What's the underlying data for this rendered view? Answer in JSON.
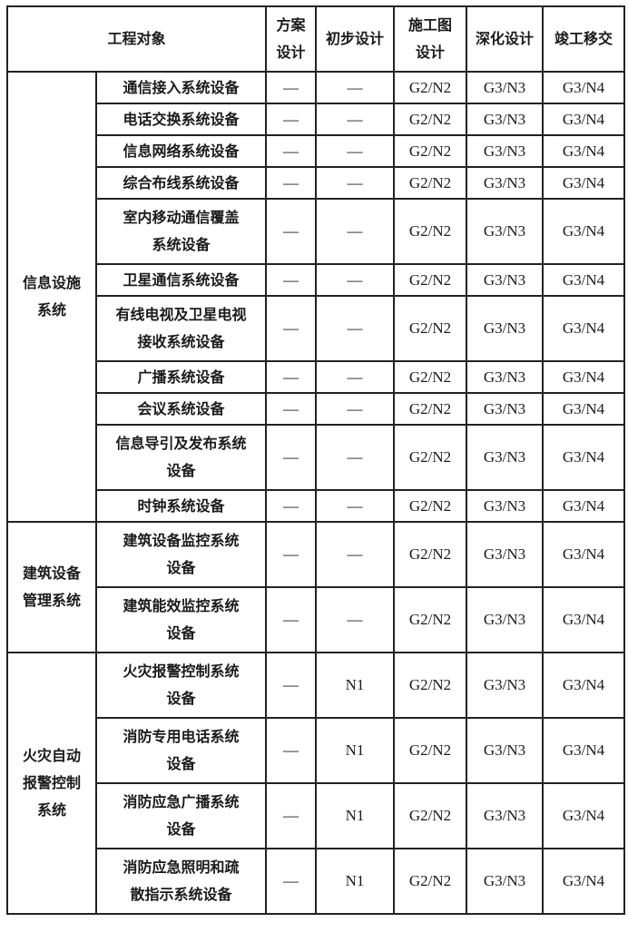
{
  "headers": {
    "object": "工程对象",
    "scheme": "方案\n设计",
    "preliminary": "初步设计",
    "construction": "施工图\n设计",
    "deepening": "深化设计",
    "handover": "竣工移交"
  },
  "groups": [
    {
      "name": "信息设施\n系统",
      "rows": [
        {
          "item": "通信接入系统设备",
          "lines": 1,
          "values": [
            "—",
            "—",
            "G2/N2",
            "G3/N3",
            "G3/N4"
          ]
        },
        {
          "item": "电话交换系统设备",
          "lines": 1,
          "values": [
            "—",
            "—",
            "G2/N2",
            "G3/N3",
            "G3/N4"
          ]
        },
        {
          "item": "信息网络系统设备",
          "lines": 1,
          "values": [
            "—",
            "—",
            "G2/N2",
            "G3/N3",
            "G3/N4"
          ]
        },
        {
          "item": "综合布线系统设备",
          "lines": 1,
          "values": [
            "—",
            "—",
            "G2/N2",
            "G3/N3",
            "G3/N4"
          ]
        },
        {
          "item": "室内移动通信覆盖\n系统设备",
          "lines": 2,
          "values": [
            "—",
            "—",
            "G2/N2",
            "G3/N3",
            "G3/N4"
          ]
        },
        {
          "item": "卫星通信系统设备",
          "lines": 1,
          "values": [
            "—",
            "—",
            "G2/N2",
            "G3/N3",
            "G3/N4"
          ]
        },
        {
          "item": "有线电视及卫星电视\n接收系统设备",
          "lines": 2,
          "values": [
            "—",
            "—",
            "G2/N2",
            "G3/N3",
            "G3/N4"
          ]
        },
        {
          "item": "广播系统设备",
          "lines": 1,
          "values": [
            "—",
            "—",
            "G2/N2",
            "G3/N3",
            "G3/N4"
          ]
        },
        {
          "item": "会议系统设备",
          "lines": 1,
          "values": [
            "—",
            "—",
            "G2/N2",
            "G3/N3",
            "G3/N4"
          ]
        },
        {
          "item": "信息导引及发布系统\n设备",
          "lines": 2,
          "values": [
            "—",
            "—",
            "G2/N2",
            "G3/N3",
            "G3/N4"
          ]
        },
        {
          "item": "时钟系统设备",
          "lines": 1,
          "values": [
            "—",
            "—",
            "G2/N2",
            "G3/N3",
            "G3/N4"
          ]
        }
      ]
    },
    {
      "name": "建筑设备\n管理系统",
      "rows": [
        {
          "item": "建筑设备监控系统\n设备",
          "lines": 2,
          "values": [
            "—",
            "—",
            "G2/N2",
            "G3/N3",
            "G3/N4"
          ]
        },
        {
          "item": "建筑能效监控系统\n设备",
          "lines": 2,
          "values": [
            "—",
            "—",
            "G2/N2",
            "G3/N3",
            "G3/N4"
          ]
        }
      ]
    },
    {
      "name": "火灾自动\n报警控制\n系统",
      "rows": [
        {
          "item": "火灾报警控制系统\n设备",
          "lines": 2,
          "values": [
            "—",
            "N1",
            "G2/N2",
            "G3/N3",
            "G3/N4"
          ]
        },
        {
          "item": "消防专用电话系统\n设备",
          "lines": 2,
          "values": [
            "—",
            "N1",
            "G2/N2",
            "G3/N3",
            "G3/N4"
          ]
        },
        {
          "item": "消防应急广播系统\n设备",
          "lines": 2,
          "values": [
            "—",
            "N1",
            "G2/N2",
            "G3/N3",
            "G3/N4"
          ]
        },
        {
          "item": "消防应急照明和疏\n散指示系统设备",
          "lines": 2,
          "values": [
            "—",
            "N1",
            "G2/N2",
            "G3/N3",
            "G3/N4"
          ]
        }
      ]
    }
  ]
}
